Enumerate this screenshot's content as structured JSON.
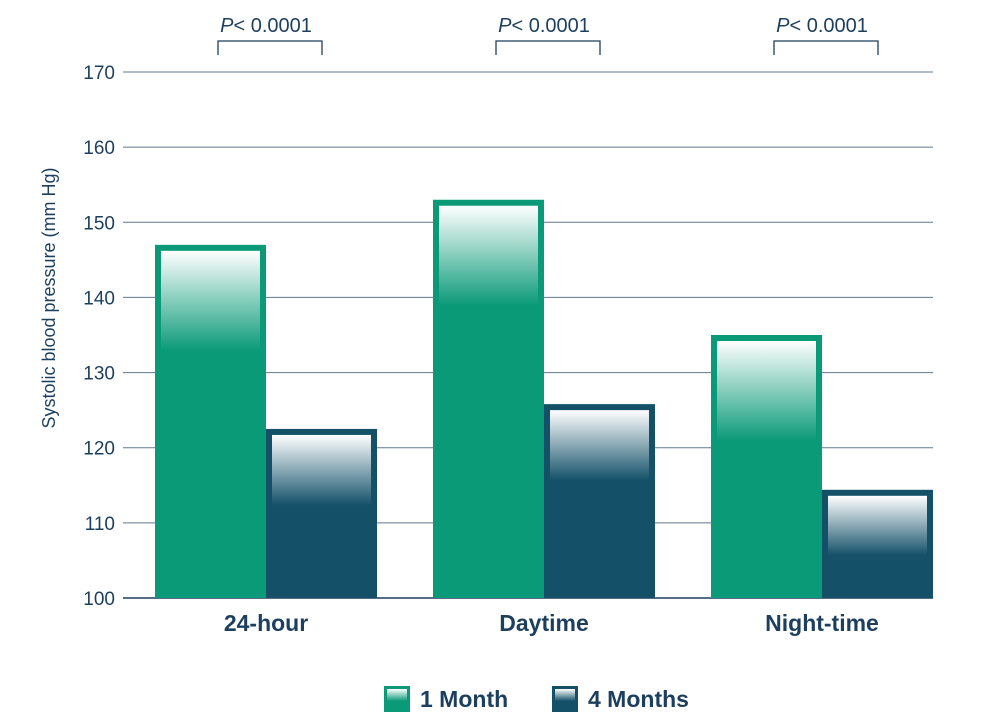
{
  "chart_data": {
    "type": "bar",
    "categories": [
      "24-hour",
      "Daytime",
      "Night-time"
    ],
    "series": [
      {
        "name": "1 Month",
        "values": [
          147,
          153,
          135
        ],
        "color": "#0a9a78",
        "border": "#0a9a78"
      },
      {
        "name": "4 Months",
        "values": [
          122.5,
          125.8,
          114.4
        ],
        "color": "#145169",
        "border": "#145169"
      }
    ],
    "ylabel": "Systolic blood pressure (mm Hg)",
    "ylim": [
      100,
      170
    ],
    "yticks": [
      100,
      110,
      120,
      130,
      140,
      150,
      160,
      170
    ],
    "grid": true,
    "legend": "bottom-center",
    "annotations": [
      {
        "category": "24-hour",
        "p_prefix": "P",
        "p_rest": "< 0.0001"
      },
      {
        "category": "Daytime",
        "p_prefix": "P",
        "p_rest": "< 0.0001"
      },
      {
        "category": "Night-time",
        "p_prefix": "P",
        "p_rest": "< 0.0001"
      }
    ]
  },
  "colors": {
    "text": "#1d3f5e",
    "grid": "#1d3f5e"
  }
}
